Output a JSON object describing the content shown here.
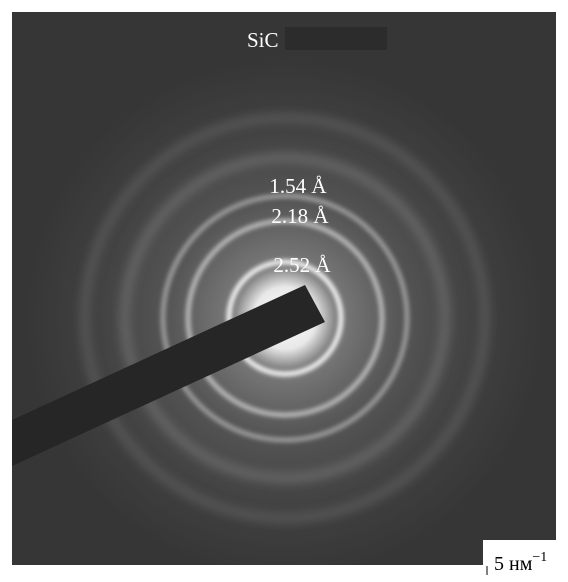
{
  "image": {
    "title": "SiC",
    "labels": [
      "1.54 Å",
      "2.18 Å",
      "2.52 Å"
    ],
    "scale_bar": {
      "text": "5 нм",
      "superscript": "−1"
    }
  }
}
